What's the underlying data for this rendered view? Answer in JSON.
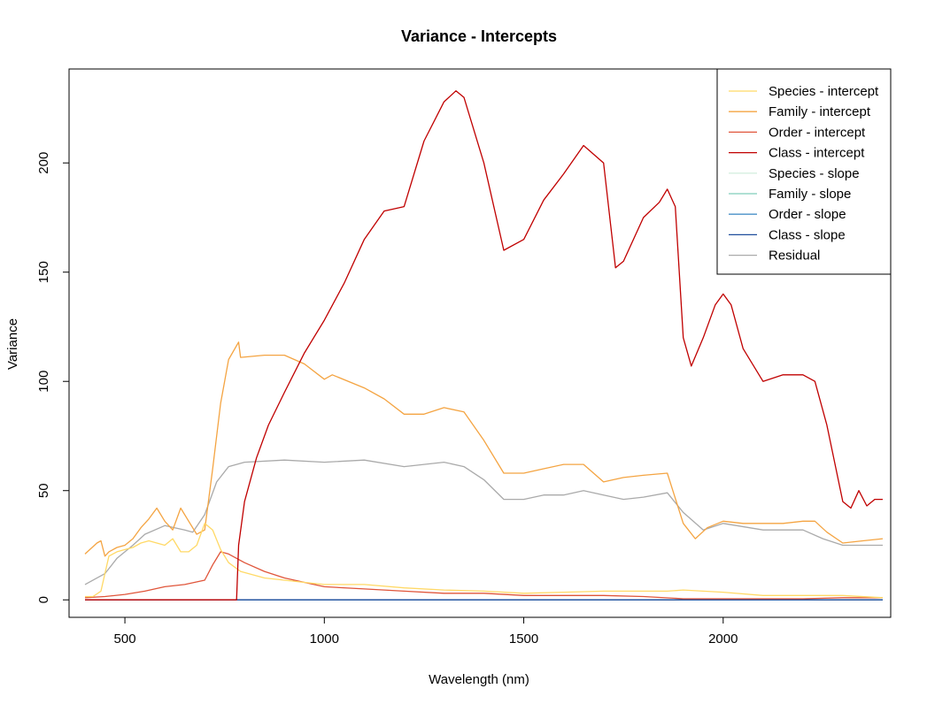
{
  "chart_data": {
    "type": "line",
    "title": "Variance - Intercepts",
    "xlabel": "Wavelength (nm)",
    "ylabel": "Variance",
    "xlim": [
      360,
      2420
    ],
    "ylim": [
      -8,
      243
    ],
    "xticks": [
      500,
      1000,
      1500,
      2000
    ],
    "yticks": [
      0,
      50,
      100,
      150,
      200
    ],
    "grid": false,
    "legend_position": "top-right",
    "series": [
      {
        "name": "Species - intercept",
        "color": "#FFD966",
        "x": [
          400,
          420,
          440,
          460,
          480,
          500,
          520,
          540,
          560,
          580,
          600,
          620,
          640,
          660,
          680,
          700,
          720,
          740,
          760,
          790,
          850,
          950,
          1000,
          1100,
          1200,
          1300,
          1400,
          1500,
          1600,
          1700,
          1800,
          1860,
          1900,
          2000,
          2100,
          2200,
          2300,
          2400
        ],
        "y": [
          1.5,
          1.5,
          4,
          20,
          22,
          23,
          24,
          26,
          27,
          26,
          25,
          28,
          22,
          22,
          25,
          35,
          32,
          23,
          17,
          13,
          10,
          8,
          7,
          7,
          5.5,
          4.5,
          4,
          3,
          3.5,
          4,
          4,
          4,
          4.5,
          3.5,
          2,
          2,
          2,
          1
        ]
      },
      {
        "name": "Family - intercept",
        "color": "#F4A442",
        "x": [
          400,
          430,
          440,
          450,
          460,
          480,
          500,
          520,
          540,
          560,
          580,
          600,
          620,
          640,
          660,
          680,
          700,
          720,
          740,
          760,
          785,
          790,
          850,
          900,
          950,
          1000,
          1020,
          1100,
          1150,
          1200,
          1250,
          1300,
          1350,
          1400,
          1450,
          1500,
          1550,
          1600,
          1650,
          1700,
          1750,
          1800,
          1860,
          1900,
          1930,
          1960,
          2000,
          2050,
          2100,
          2150,
          2200,
          2230,
          2260,
          2300,
          2350,
          2400
        ],
        "y": [
          21,
          26,
          27,
          20,
          22,
          24,
          25,
          28,
          33,
          37,
          42,
          36,
          32,
          42,
          36,
          30,
          32,
          60,
          90,
          110,
          118,
          111,
          112,
          112,
          108,
          101,
          103,
          97,
          92,
          85,
          85,
          88,
          86,
          73,
          58,
          58,
          60,
          62,
          62,
          54,
          56,
          57,
          58,
          35,
          28,
          33,
          36,
          35,
          35,
          35,
          36,
          36,
          31,
          26,
          27,
          28
        ]
      },
      {
        "name": "Order - intercept",
        "color": "#E0553A",
        "x": [
          400,
          450,
          500,
          550,
          600,
          650,
          700,
          720,
          740,
          760,
          800,
          850,
          900,
          950,
          1000,
          1100,
          1200,
          1300,
          1400,
          1500,
          1600,
          1700,
          1800,
          1900,
          2000,
          2100,
          2200,
          2300,
          2400
        ],
        "y": [
          1,
          1.5,
          2.5,
          4,
          6,
          7,
          9,
          16,
          22,
          21,
          17,
          13,
          10,
          8,
          6,
          5,
          4,
          3,
          3,
          2,
          2,
          2,
          1.5,
          0.5,
          0.5,
          0.5,
          0.5,
          1,
          1
        ]
      },
      {
        "name": "Class - intercept",
        "color": "#C00000",
        "x": [
          400,
          500,
          600,
          700,
          780,
          785,
          800,
          830,
          860,
          900,
          950,
          1000,
          1050,
          1100,
          1150,
          1200,
          1250,
          1300,
          1330,
          1350,
          1400,
          1450,
          1500,
          1550,
          1600,
          1650,
          1700,
          1730,
          1750,
          1800,
          1840,
          1860,
          1880,
          1900,
          1920,
          1950,
          1980,
          2000,
          2020,
          2050,
          2100,
          2150,
          2200,
          2230,
          2260,
          2300,
          2320,
          2340,
          2360,
          2380,
          2400
        ],
        "y": [
          0,
          0,
          0,
          0,
          0,
          25,
          45,
          65,
          80,
          95,
          113,
          128,
          145,
          165,
          178,
          180,
          210,
          228,
          233,
          230,
          200,
          160,
          165,
          183,
          195,
          208,
          200,
          152,
          155,
          175,
          182,
          188,
          180,
          120,
          107,
          120,
          135,
          140,
          135,
          115,
          100,
          103,
          103,
          100,
          80,
          45,
          42,
          50,
          43,
          46,
          46
        ]
      },
      {
        "name": "Species - slope",
        "color": "#D6EFE0",
        "x": [
          400,
          2400
        ],
        "y": [
          0,
          0
        ]
      },
      {
        "name": "Family - slope",
        "color": "#7FCDBB",
        "x": [
          400,
          2400
        ],
        "y": [
          0,
          0
        ]
      },
      {
        "name": "Order - slope",
        "color": "#4A90C8",
        "x": [
          400,
          2400
        ],
        "y": [
          0,
          0
        ]
      },
      {
        "name": "Class - slope",
        "color": "#1F4E9C",
        "x": [
          400,
          2400
        ],
        "y": [
          0,
          0
        ]
      },
      {
        "name": "Residual",
        "color": "#AAAAAA",
        "x": [
          400,
          450,
          480,
          500,
          520,
          550,
          600,
          650,
          670,
          700,
          730,
          760,
          800,
          900,
          1000,
          1100,
          1200,
          1300,
          1350,
          1400,
          1450,
          1500,
          1550,
          1600,
          1650,
          1700,
          1750,
          1800,
          1860,
          1900,
          1950,
          2000,
          2100,
          2200,
          2250,
          2300,
          2400
        ],
        "y": [
          7,
          12,
          19,
          22,
          25,
          30,
          34,
          32,
          31,
          39,
          54,
          61,
          63,
          64,
          63,
          64,
          61,
          63,
          61,
          55,
          46,
          46,
          48,
          48,
          50,
          48,
          46,
          47,
          49,
          40,
          32,
          35,
          32,
          32,
          28,
          25,
          25
        ]
      }
    ]
  }
}
